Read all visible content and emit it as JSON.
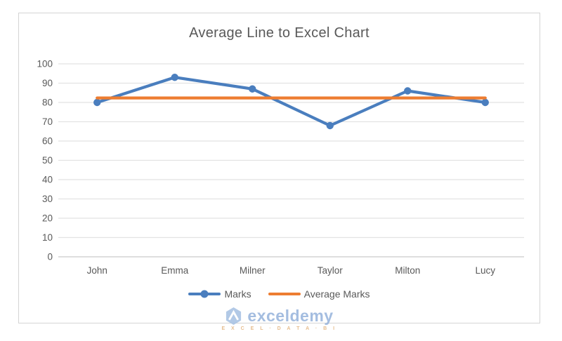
{
  "chart": {
    "colors": {
      "marks": "#4a7ebe",
      "average": "#ed7d31",
      "grid": "#e2e2e2",
      "axis": "#c9c9c9",
      "text": "#595959",
      "frame": "#d4d4d4",
      "watermark_blue": "#94b2da",
      "watermark_orange": "#e2b27a"
    },
    "watermark": {
      "brand": "exceldemy",
      "tagline": "E X C E L · D A T A · B I"
    }
  },
  "chart_data": {
    "type": "line",
    "title": "Average Line to Excel Chart",
    "categories": [
      "John",
      "Emma",
      "Milner",
      "Taylor",
      "Milton",
      "Lucy"
    ],
    "series": [
      {
        "name": "Marks",
        "values": [
          80,
          93,
          87,
          68,
          86,
          80
        ],
        "color": "#4a7ebe",
        "marker": "circle"
      },
      {
        "name": "Average Marks",
        "values": [
          82.33,
          82.33,
          82.33,
          82.33,
          82.33,
          82.33
        ],
        "color": "#ed7d31",
        "marker": "none"
      }
    ],
    "xlabel": "",
    "ylabel": "",
    "ylim": [
      0,
      100
    ],
    "ytick_step": 10,
    "grid": true,
    "legend_position": "bottom"
  }
}
